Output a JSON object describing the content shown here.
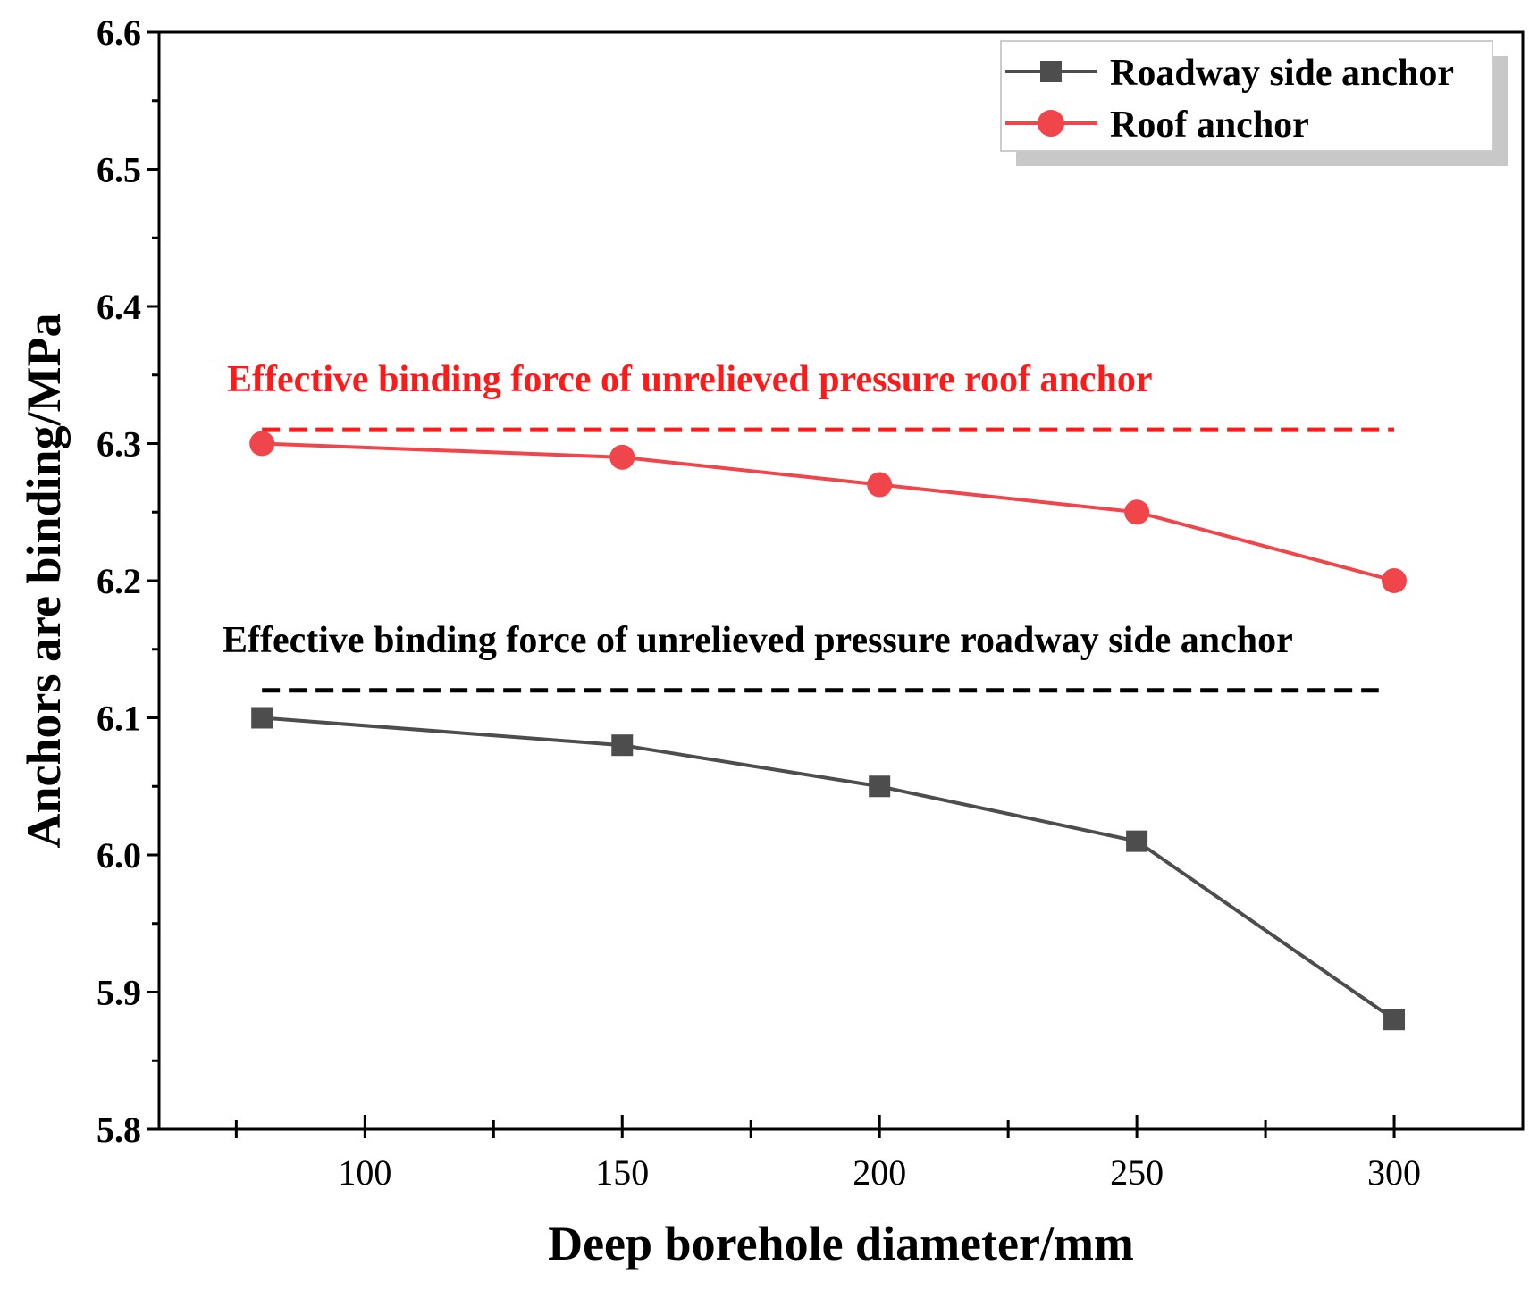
{
  "chart_data": {
    "type": "line",
    "title": "",
    "xlabel": "Deep borehole diameter/mm",
    "ylabel": "Anchors are binding/MPa",
    "xlim": [
      60,
      325
    ],
    "ylim": [
      5.8,
      6.6
    ],
    "x": [
      80,
      150,
      200,
      250,
      300
    ],
    "xticks": [
      100,
      150,
      200,
      250,
      300
    ],
    "xtick_labels": [
      "100",
      "150",
      "200",
      "250",
      "300"
    ],
    "xminor": [
      75,
      125,
      175,
      225,
      275
    ],
    "yticks": [
      5.8,
      5.9,
      6.0,
      6.1,
      6.2,
      6.3,
      6.4,
      6.5,
      6.6
    ],
    "ytick_labels": [
      "5.8",
      "5.9",
      "6.0",
      "6.1",
      "6.2",
      "6.3",
      "6.4",
      "6.5",
      "6.6"
    ],
    "series": [
      {
        "name": "Roadway side anchor",
        "marker": "square",
        "color": "#4d4d4d",
        "values": [
          6.1,
          6.08,
          6.05,
          6.01,
          5.88
        ]
      },
      {
        "name": "Roof anchor",
        "marker": "circle",
        "color": "#f0454a",
        "values": [
          6.3,
          6.29,
          6.27,
          6.25,
          6.2
        ]
      }
    ],
    "reference_lines": [
      {
        "label": "Effective binding force of unrelieved pressure roof anchor",
        "y": 6.31,
        "x_start": 80,
        "x_end": 300,
        "color": "#ff1a1a"
      },
      {
        "label": "Effective binding force of unrelieved pressure roadway side anchor",
        "y": 6.12,
        "x_start": 80,
        "x_end": 297,
        "color": "#000000"
      }
    ],
    "legend": {
      "position": "top-right"
    }
  }
}
